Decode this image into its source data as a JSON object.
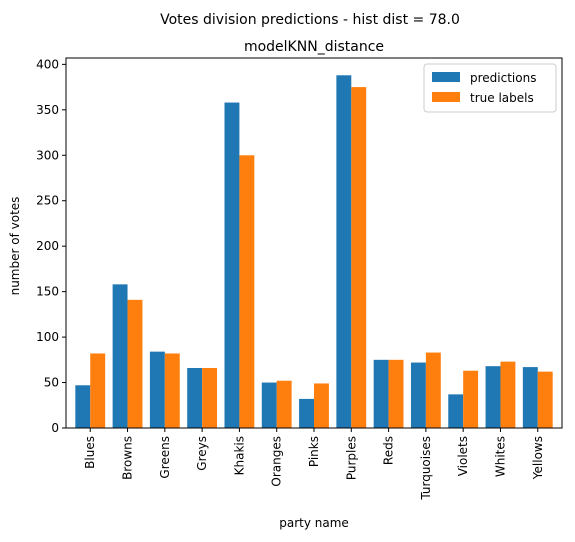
{
  "chart_data": {
    "type": "bar",
    "suptitle": "Votes division predictions - hist dist = 78.0",
    "title": "modelKNN_distance",
    "xlabel": "party name",
    "ylabel": "number of votes",
    "categories": [
      "Blues",
      "Browns",
      "Greens",
      "Greys",
      "Khakis",
      "Oranges",
      "Pinks",
      "Purples",
      "Reds",
      "Turquoises",
      "Violets",
      "Whites",
      "Yellows"
    ],
    "series": [
      {
        "name": "predictions",
        "color": "#1f77b4",
        "values": [
          47,
          158,
          84,
          66,
          358,
          50,
          32,
          388,
          75,
          72,
          37,
          68,
          67
        ]
      },
      {
        "name": "true labels",
        "color": "#ff7f0e",
        "values": [
          82,
          141,
          82,
          66,
          300,
          52,
          49,
          375,
          75,
          83,
          63,
          73,
          62
        ]
      }
    ],
    "ylim": [
      0,
      407
    ],
    "yticks": [
      0,
      50,
      100,
      150,
      200,
      250,
      300,
      350,
      400
    ],
    "grid": false,
    "legend": "top-right"
  }
}
